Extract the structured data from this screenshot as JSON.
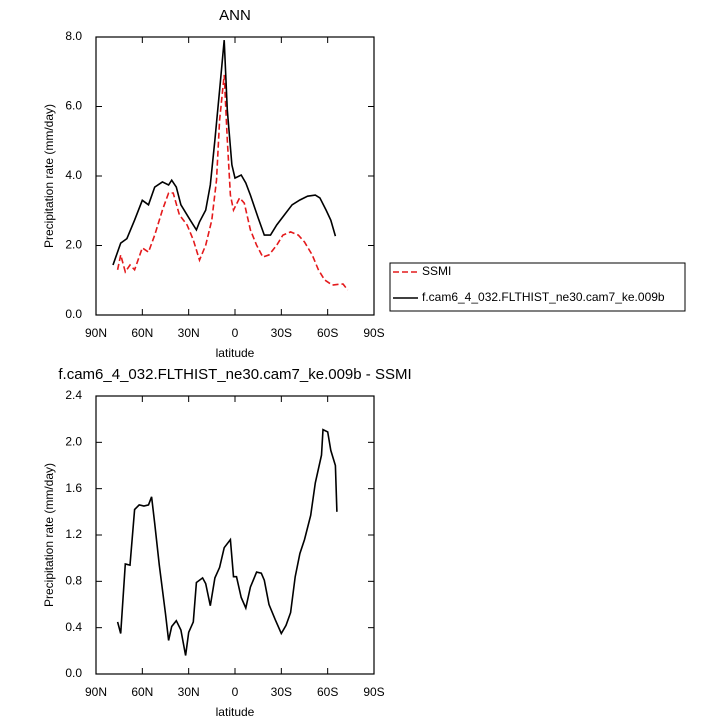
{
  "chart_data": [
    {
      "type": "line",
      "title": "ANN",
      "x_label": "latitude",
      "y_label": "Precipitation rate (mm/day)",
      "xlim": [
        90,
        -90
      ],
      "xticks": [
        {
          "value": 90,
          "label": "90N"
        },
        {
          "value": 60,
          "label": "60N"
        },
        {
          "value": 30,
          "label": "30N"
        },
        0,
        {
          "value": -30,
          "label": "30S"
        },
        {
          "value": -60,
          "label": "60S"
        },
        {
          "value": -90,
          "label": "90S"
        }
      ],
      "ylim": [
        0,
        8
      ],
      "yticks": [
        {
          "value": 0,
          "label": "0.0"
        },
        {
          "value": 2,
          "label": "2.0"
        },
        {
          "value": 4,
          "label": "4.0"
        },
        {
          "value": 6,
          "label": "6.0"
        },
        {
          "value": 8,
          "label": "8.0"
        }
      ],
      "legend": "right",
      "series": [
        {
          "name": "SSMI",
          "color": "#e41a1c",
          "dashed": true,
          "x": [
            76,
            74,
            71,
            68,
            65,
            60,
            56,
            52,
            47,
            43,
            40,
            36,
            31,
            27,
            23,
            19,
            15,
            12,
            10,
            7,
            5,
            3,
            1,
            -3,
            -6,
            -10,
            -14,
            -18,
            -22,
            -27,
            -31,
            -36,
            -41,
            -45,
            -50,
            -54,
            -58,
            -63,
            -68,
            -70,
            -73
          ],
          "values": [
            1.3,
            1.73,
            1.24,
            1.44,
            1.3,
            1.93,
            1.81,
            2.3,
            3.02,
            3.51,
            3.51,
            2.88,
            2.59,
            2.16,
            1.58,
            2.01,
            2.73,
            3.88,
            5.61,
            6.91,
            5.04,
            3.45,
            3.02,
            3.37,
            3.22,
            2.45,
            2.01,
            1.67,
            1.73,
            2.01,
            2.3,
            2.39,
            2.3,
            2.1,
            1.73,
            1.3,
            1.01,
            0.86,
            0.89,
            0.89,
            0.72
          ]
        },
        {
          "name": "f.cam6_4_032.FLTHIST_ne30.cam7_ke.009b",
          "color": "#000000",
          "dashed": false,
          "x": [
            79,
            74,
            70,
            65,
            60,
            56,
            52,
            47,
            43,
            41,
            38,
            35,
            29,
            25,
            23,
            19,
            16,
            13,
            10,
            7,
            5,
            2,
            0,
            -4,
            -7,
            -10,
            -15,
            -19,
            -23,
            -27,
            -32,
            -37,
            -42,
            -47,
            -52,
            -55,
            -59,
            -62,
            -65
          ],
          "values": [
            1.44,
            2.07,
            2.2,
            2.73,
            3.3,
            3.17,
            3.68,
            3.83,
            3.74,
            3.88,
            3.68,
            3.17,
            2.73,
            2.45,
            2.68,
            3.02,
            3.74,
            5.04,
            6.47,
            7.91,
            5.9,
            4.32,
            3.94,
            4.03,
            3.8,
            3.45,
            2.79,
            2.3,
            2.3,
            2.59,
            2.88,
            3.17,
            3.31,
            3.42,
            3.45,
            3.37,
            3.02,
            2.73,
            2.27
          ]
        }
      ]
    },
    {
      "type": "line",
      "title": "f.cam6_4_032.FLTHIST_ne30.cam7_ke.009b - SSMI",
      "x_label": "latitude",
      "y_label": "Precipitation rate (mm/day)",
      "xlim": [
        90,
        -90
      ],
      "xticks": [
        {
          "value": 90,
          "label": "90N"
        },
        {
          "value": 60,
          "label": "60N"
        },
        {
          "value": 30,
          "label": "30N"
        },
        0,
        {
          "value": -30,
          "label": "30S"
        },
        {
          "value": -60,
          "label": "60S"
        },
        {
          "value": -90,
          "label": "90S"
        }
      ],
      "ylim": [
        0,
        2.4
      ],
      "yticks": [
        {
          "value": 0,
          "label": "0.0"
        },
        {
          "value": 0.4,
          "label": "0.4"
        },
        {
          "value": 0.8,
          "label": "0.8"
        },
        {
          "value": 1.2,
          "label": "1.2"
        },
        {
          "value": 1.6,
          "label": "1.6"
        },
        {
          "value": 2.0,
          "label": "2.0"
        },
        {
          "value": 2.4,
          "label": "2.4"
        }
      ],
      "color": "#000000",
      "x": [
        76,
        74,
        71,
        68,
        65,
        62,
        59,
        56,
        54,
        52,
        49,
        45,
        43,
        41,
        38,
        35,
        32,
        30,
        27,
        25,
        21,
        19,
        16,
        13,
        10,
        7,
        3,
        1,
        -1,
        -4,
        -7,
        -10,
        -14,
        -17,
        -19,
        -22,
        -26,
        -30,
        -33,
        -36,
        -39,
        -42,
        -45,
        -49,
        -52,
        -56,
        -57,
        -60,
        -62,
        -65,
        -66
      ],
      "values": [
        0.45,
        0.35,
        0.95,
        0.94,
        1.42,
        1.46,
        1.45,
        1.46,
        1.53,
        1.3,
        0.94,
        0.52,
        0.29,
        0.41,
        0.46,
        0.38,
        0.16,
        0.36,
        0.45,
        0.79,
        0.83,
        0.78,
        0.59,
        0.83,
        0.92,
        1.09,
        1.16,
        0.84,
        0.84,
        0.66,
        0.57,
        0.75,
        0.88,
        0.87,
        0.81,
        0.6,
        0.47,
        0.35,
        0.42,
        0.53,
        0.84,
        1.04,
        1.16,
        1.37,
        1.65,
        1.89,
        2.11,
        2.09,
        1.93,
        1.8,
        1.4
      ]
    }
  ]
}
